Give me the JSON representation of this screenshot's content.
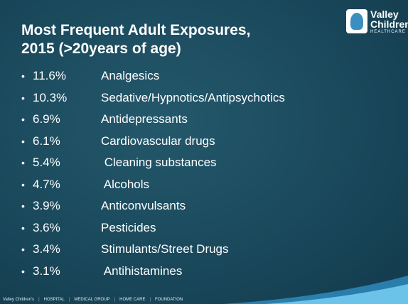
{
  "header": {
    "title_lines": [
      "Most Frequent Adult Exposures,",
      "2015 (>20years of age)"
    ],
    "logo": {
      "lines": [
        "Valley",
        "Children's",
        "HEALTHCARE"
      ]
    }
  },
  "list": {
    "items": [
      {
        "percent": "11.6%",
        "label": "Analgesics"
      },
      {
        "percent": "10.3%",
        "label": "Sedative/Hypnotics/Antipsychotics"
      },
      {
        "percent": "6.9%",
        "label": "Antidepressants"
      },
      {
        "percent": "6.1%",
        "label": "Cardiovascular drugs"
      },
      {
        "percent": "5.4%",
        "label": " Cleaning substances"
      },
      {
        "percent": "4.7%",
        "label": " Alcohols"
      },
      {
        "percent": "3.9%",
        "label": "Anticonvulsants"
      },
      {
        "percent": "3.6%",
        "label": "Pesticides"
      },
      {
        "percent": "3.4%",
        "label": "Stimulants/Street Drugs"
      },
      {
        "percent": "3.1%",
        "label": " Antihistamines"
      }
    ]
  },
  "footer": {
    "items": [
      "Valley Children's",
      "HOSPITAL",
      "MEDICAL GROUP",
      "HOME CARE",
      "FOUNDATION"
    ]
  }
}
